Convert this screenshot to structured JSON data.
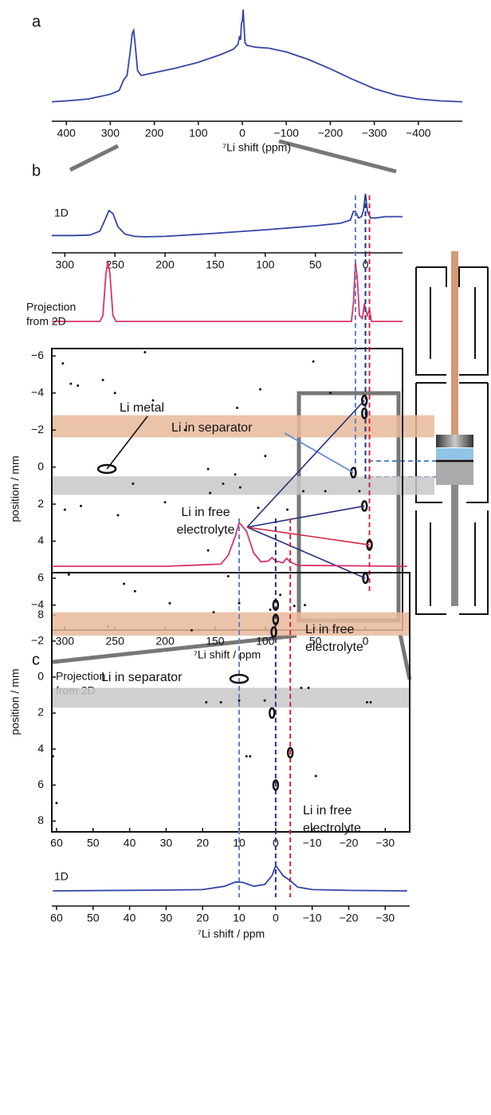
{
  "chart_data": [
    {
      "type": "line",
      "label": "a",
      "xlabel": "⁷Li shift (ppm)",
      "xlim": [
        433,
        -500
      ],
      "ylim": [
        0,
        100
      ],
      "xticks": [
        400,
        300,
        200,
        100,
        0,
        {
          "value": -100,
          "label": "−100"
        },
        {
          "value": -200,
          "label": "−200"
        },
        {
          "value": -300,
          "label": "−300"
        },
        {
          "value": -400,
          "label": "−400"
        }
      ],
      "series": [
        {
          "color": "#3346a6",
          "x": [
            433,
            400,
            350,
            300,
            280,
            270,
            262,
            255,
            250,
            247,
            243,
            238,
            230,
            200,
            150,
            100,
            50,
            20,
            10,
            6,
            4,
            2,
            0,
            -2,
            -4,
            -6,
            -10,
            -30,
            -60,
            -100,
            -150,
            -200,
            -250,
            -300,
            -350,
            -400,
            -450,
            -500
          ],
          "values": [
            2,
            3,
            5,
            10,
            14,
            25,
            30,
            55,
            75,
            78,
            60,
            35,
            30,
            33,
            38,
            44,
            52,
            58,
            63,
            72,
            68,
            85,
            88,
            100,
            82,
            65,
            62,
            60,
            59,
            55,
            47,
            37,
            26,
            16,
            9,
            5,
            3,
            2
          ]
        }
      ]
    },
    {
      "type": "line",
      "label": "b",
      "xlim": [
        313,
        -37
      ],
      "ylim": [
        0,
        100
      ],
      "xticks": [
        300,
        250,
        200,
        150,
        100,
        50,
        0
      ],
      "series": [
        {
          "name": [
            "1D"
          ],
          "color": "#3346a6",
          "x": [
            313,
            290,
            275,
            265,
            260,
            256,
            252,
            247,
            240,
            230,
            220,
            200,
            150,
            100,
            50,
            25,
            15,
            12,
            10,
            7,
            4,
            2,
            0,
            -2,
            -5,
            -10,
            -20,
            -37
          ],
          "values": [
            5,
            5,
            6,
            15,
            40,
            62,
            55,
            25,
            8,
            3,
            2,
            3,
            10,
            18,
            27,
            33,
            40,
            60,
            60,
            45,
            48,
            62,
            100,
            60,
            45,
            45,
            48,
            48
          ]
        }
      ]
    },
    {
      "type": "line",
      "xlim": [
        313,
        -37
      ],
      "ylim": [
        0,
        100
      ],
      "series": [
        {
          "name": [
            "Projection",
            "from 2D"
          ],
          "color": "#d6336c",
          "x": [
            313,
            265,
            262,
            259,
            257,
            255,
            252,
            249,
            100,
            14,
            12,
            10,
            8,
            6,
            3,
            1,
            0,
            -2,
            -4,
            -6,
            -37
          ],
          "values": [
            0,
            0,
            10,
            80,
            100,
            80,
            10,
            0,
            0,
            0,
            30,
            100,
            70,
            10,
            5,
            30,
            20,
            10,
            20,
            0,
            0
          ]
        }
      ]
    },
    {
      "type": "scatter",
      "xlabel": "⁷Li shift / ppm",
      "ylabel": "position / mm",
      "xlim": [
        313,
        -37
      ],
      "ylim": [
        -6.4,
        8.8
      ],
      "xticks": [
        300,
        250,
        200,
        150,
        100,
        50,
        0
      ],
      "yticks": [
        {
          "value": -6,
          "label": "−6"
        },
        {
          "value": -4,
          "label": "−4"
        },
        {
          "value": -2,
          "label": "−2"
        },
        0,
        2,
        4,
        6,
        8
      ],
      "bands": [
        {
          "range": [
            -2.8,
            -1.6
          ],
          "color": "#e8b89a"
        },
        {
          "range": [
            0.5,
            1.5
          ],
          "color": "#c8c8c8"
        }
      ],
      "markers": [
        {
          "x": 10,
          "color": "#5b84c8"
        },
        {
          "x": 0,
          "color": "#25317a"
        },
        {
          "x": -4,
          "color": "#d7263d"
        }
      ],
      "dots": {
        "x": [
          302,
          294,
          287,
          300,
          284,
          296,
          262,
          257,
          250,
          247,
          241,
          230,
          232,
          220,
          212,
          200,
          180,
          157,
          155,
          157,
          142,
          128,
          130,
          125,
          105,
          100,
          107,
          85,
          78,
          95,
          71,
          62,
          40,
          52,
          35,
          6
        ],
        "y": [
          -5.6,
          -4.5,
          -4.4,
          2.3,
          2.1,
          5.8,
          -4.7,
          8.6,
          -4.0,
          2.6,
          6.3,
          6.7,
          0.9,
          -6.2,
          -3.6,
          1.9,
          -2.0,
          0.1,
          1.4,
          4.5,
          0.9,
          -3.2,
          0.4,
          1.1,
          -4.2,
          -0.6,
          2.2,
          6.9,
          2.3,
          7.7,
          7.5,
          1.3,
          1.3,
          -5.7,
          -4.0,
          1.3
        ]
      },
      "clusters": {
        "x": [
          258,
          12,
          1,
          1,
          1,
          0,
          -4
        ],
        "y": [
          0.1,
          0.3,
          -3.6,
          -2.9,
          2.1,
          6.0,
          4.2
        ]
      },
      "annotations": [
        {
          "text": [
            "Li metal"
          ]
        },
        {
          "text": [
            "Li in separator"
          ],
          "color": "#5b84c8"
        },
        {
          "text": [
            "Li in free",
            "electrolyte"
          ]
        }
      ]
    },
    {
      "type": "line",
      "label": "c",
      "xlim": [
        61.3,
        -36.7
      ],
      "ylim": [
        0,
        100
      ],
      "series": [
        {
          "name": [
            "Projection",
            "from 2D"
          ],
          "color": "#d6336c",
          "x": [
            61,
            30,
            15,
            13,
            11,
            10,
            8,
            6,
            4,
            2,
            1,
            0,
            -2,
            -3,
            -4,
            -6,
            -36
          ],
          "values": [
            0,
            0,
            5,
            25,
            70,
            100,
            80,
            30,
            10,
            12,
            20,
            12,
            8,
            18,
            10,
            2,
            0
          ]
        }
      ]
    },
    {
      "type": "scatter",
      "ylabel": "position / mm",
      "xlim": [
        61.3,
        -36.7
      ],
      "ylim": [
        -5.8,
        8.6
      ],
      "xticks": [
        60,
        50,
        40,
        30,
        20,
        10,
        0,
        {
          "value": -10,
          "label": "−10"
        },
        {
          "value": -20,
          "label": "−20"
        },
        {
          "value": -30,
          "label": "−30"
        }
      ],
      "yticks": [
        {
          "value": -4,
          "label": "−4"
        },
        {
          "value": -2,
          "label": "−2"
        },
        0,
        2,
        4,
        6,
        8
      ],
      "bands": [
        {
          "range": [
            -3.6,
            -2.3
          ],
          "color": "#e8b89a"
        },
        {
          "range": [
            0.6,
            1.7
          ],
          "color": "#c8c8c8"
        }
      ],
      "markers": [
        {
          "x": 10,
          "color": "#5b84c8"
        },
        {
          "x": 0,
          "color": "#25317a"
        },
        {
          "x": -4,
          "color": "#d7263d"
        }
      ],
      "dots": {
        "x": [
          61,
          60,
          29,
          23,
          19,
          15,
          17,
          13,
          10,
          10,
          8,
          7,
          -7,
          -9,
          -11,
          -8,
          -25,
          -26,
          3
        ],
        "y": [
          4.4,
          7.0,
          -4.1,
          -2.6,
          1.4,
          1.4,
          -3.6,
          -5.6,
          -4.1,
          1.3,
          4.4,
          4.4,
          0.6,
          0.6,
          5.5,
          -4.0,
          1.4,
          1.4,
          1.3
        ]
      },
      "clusters": {
        "x": [
          10,
          0,
          0,
          0.5,
          1,
          -4,
          0
        ],
        "y": [
          0.1,
          -4.0,
          -3.2,
          -2.5,
          2.0,
          4.2,
          6.0
        ]
      },
      "annotations": [
        {
          "text": [
            "Li in free",
            "electrolyte"
          ]
        },
        {
          "text": [
            "Li in separator"
          ],
          "color": "#5b84c8"
        },
        {
          "text": [
            "Li in free",
            "electrolyte"
          ]
        }
      ]
    },
    {
      "type": "line",
      "xlabel": "⁷Li shift / ppm",
      "xlim": [
        61.3,
        -36.7
      ],
      "ylim": [
        0,
        100
      ],
      "xticks": [
        60,
        50,
        40,
        30,
        20,
        10,
        0,
        {
          "value": -10,
          "label": "−10"
        },
        {
          "value": -20,
          "label": "−20"
        },
        {
          "value": -30,
          "label": "−30"
        }
      ],
      "series": [
        {
          "name": [
            "1D"
          ],
          "color": "#3346a6",
          "x": [
            61,
            30,
            20,
            14,
            11,
            9,
            6,
            3,
            1,
            0,
            -2,
            -4,
            -6,
            -10,
            -20,
            -36
          ],
          "values": [
            0,
            3,
            5,
            18,
            35,
            33,
            18,
            25,
            60,
            100,
            60,
            40,
            15,
            5,
            2,
            0
          ]
        }
      ]
    }
  ]
}
